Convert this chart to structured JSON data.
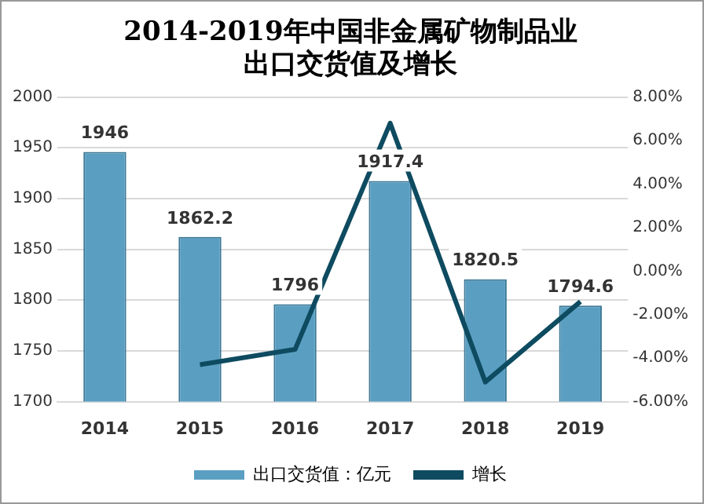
{
  "chart_data": {
    "type": "bar",
    "title": "2014-2019年中国非金属矿物制品业出口交货值及增长",
    "categories": [
      "2014",
      "2015",
      "2016",
      "2017",
      "2018",
      "2019"
    ],
    "series": [
      {
        "name": "出口交货值：亿元",
        "color": "#5a9fc2",
        "values": [
          1946,
          1862.2,
          1796,
          1917.4,
          1820.5,
          1794.6
        ],
        "value_labels": [
          "1946",
          "1862.2",
          "1796",
          "1917.4",
          "1820.5",
          "1794.6"
        ]
      },
      {
        "name": "增长",
        "type": "line",
        "axis": "y2",
        "color": "#0e4b60",
        "values": [
          null,
          -4.3,
          -3.6,
          6.8,
          -5.1,
          -1.4
        ]
      }
    ],
    "ylim": [
      1700,
      2000
    ],
    "yticks": [
      1700,
      1750,
      1800,
      1850,
      1900,
      1950,
      2000
    ],
    "y2lim": [
      -6,
      8
    ],
    "y2ticks": [
      {
        "value": -6,
        "label": "-6.00%"
      },
      {
        "value": -4,
        "label": "-4.00%"
      },
      {
        "value": -2,
        "label": "-2.00%"
      },
      {
        "value": 0,
        "label": "0.00%"
      },
      {
        "value": 2,
        "label": "2.00%"
      },
      {
        "value": 4,
        "label": "4.00%"
      },
      {
        "value": 6,
        "label": "6.00%"
      },
      {
        "value": 8,
        "label": "8.00%"
      }
    ],
    "grid": "y",
    "legend": "bottom",
    "marker": "none"
  }
}
